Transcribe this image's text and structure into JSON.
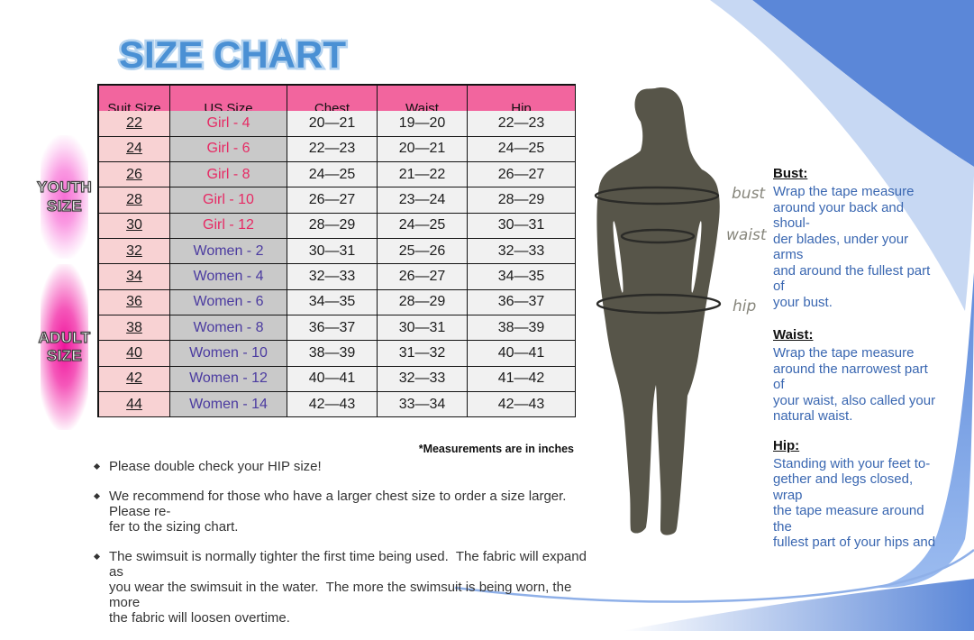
{
  "title": "SIZE CHART",
  "side_labels": {
    "youth": "YOUTH\nSIZE",
    "adult": "ADULT\nSIZE"
  },
  "table": {
    "headers": [
      "Suit Size",
      "US Size",
      "Chest",
      "Waist",
      "Hip"
    ],
    "rows": [
      {
        "suit_size": "22",
        "us_size": "Girl - 4",
        "chest": "20—21",
        "waist": "19—20",
        "hip": "22—23",
        "group": "youth"
      },
      {
        "suit_size": "24",
        "us_size": "Girl - 6",
        "chest": "22—23",
        "waist": "20—21",
        "hip": "24—25",
        "group": "youth"
      },
      {
        "suit_size": "26",
        "us_size": "Girl - 8",
        "chest": "24—25",
        "waist": "21—22",
        "hip": "26—27",
        "group": "youth"
      },
      {
        "suit_size": "28",
        "us_size": "Girl - 10",
        "chest": "26—27",
        "waist": "23—24",
        "hip": "28—29",
        "group": "youth"
      },
      {
        "suit_size": "30",
        "us_size": "Girl - 12",
        "chest": "28—29",
        "waist": "24—25",
        "hip": "30—31",
        "group": "youth"
      },
      {
        "suit_size": "32",
        "us_size": "Women - 2",
        "chest": "30—31",
        "waist": "25—26",
        "hip": "32—33",
        "group": "adult"
      },
      {
        "suit_size": "34",
        "us_size": "Women - 4",
        "chest": "32—33",
        "waist": "26—27",
        "hip": "34—35",
        "group": "adult"
      },
      {
        "suit_size": "36",
        "us_size": "Women - 6",
        "chest": "34—35",
        "waist": "28—29",
        "hip": "36—37",
        "group": "adult"
      },
      {
        "suit_size": "38",
        "us_size": "Women - 8",
        "chest": "36—37",
        "waist": "30—31",
        "hip": "38—39",
        "group": "adult"
      },
      {
        "suit_size": "40",
        "us_size": "Women - 10",
        "chest": "38—39",
        "waist": "31—32",
        "hip": "40—41",
        "group": "adult"
      },
      {
        "suit_size": "42",
        "us_size": "Women - 12",
        "chest": "40—41",
        "waist": "32—33",
        "hip": "41—42",
        "group": "adult"
      },
      {
        "suit_size": "44",
        "us_size": "Women - 14",
        "chest": "42—43",
        "waist": "33—34",
        "hip": "42—43",
        "group": "adult"
      }
    ],
    "footnote": "*Measurements are in inches"
  },
  "figure_labels": {
    "bust": "bust",
    "waist": "waist",
    "hip": "hip"
  },
  "measure_guide": {
    "bust": {
      "title": "Bust:",
      "text": "Wrap the tape measure\naround your back and shoul-\nder blades, under your arms\nand around the fullest part of\nyour bust."
    },
    "waist": {
      "title": "Waist:",
      "text": "Wrap the tape measure\naround the narrowest part of\nyour waist, also called your\nnatural waist."
    },
    "hip": {
      "title": "Hip:",
      "text": "Standing with your feet to-\ngether and legs closed, wrap\nthe tape measure around the\nfullest part of your hips and"
    }
  },
  "notes": [
    "Please double check your HIP size!",
    "We recommend for those who have a larger chest size to order a size larger.  Please re-\nfer to the sizing chart.",
    "The swimsuit is normally tighter the first time being used.  The fabric will expand as\nyou wear the swimsuit in the water.  The more the swimsuit is being worn, the more\nthe fabric will loosen overtime."
  ],
  "colors": {
    "header_pink": "#f2659e",
    "youth_row_pink": "#f8d2d3",
    "us_gray": "#c9c9c9",
    "girl_text": "#e62a64",
    "women_text": "#4b3ba0",
    "adult_pink": "#f0149b",
    "title_blue": "#4a90d4",
    "guide_blue": "#3a67b1",
    "swoosh_blue": "#5b87d8",
    "swoosh_light": "#c7d8f3",
    "silhouette_gray": "#575549"
  }
}
